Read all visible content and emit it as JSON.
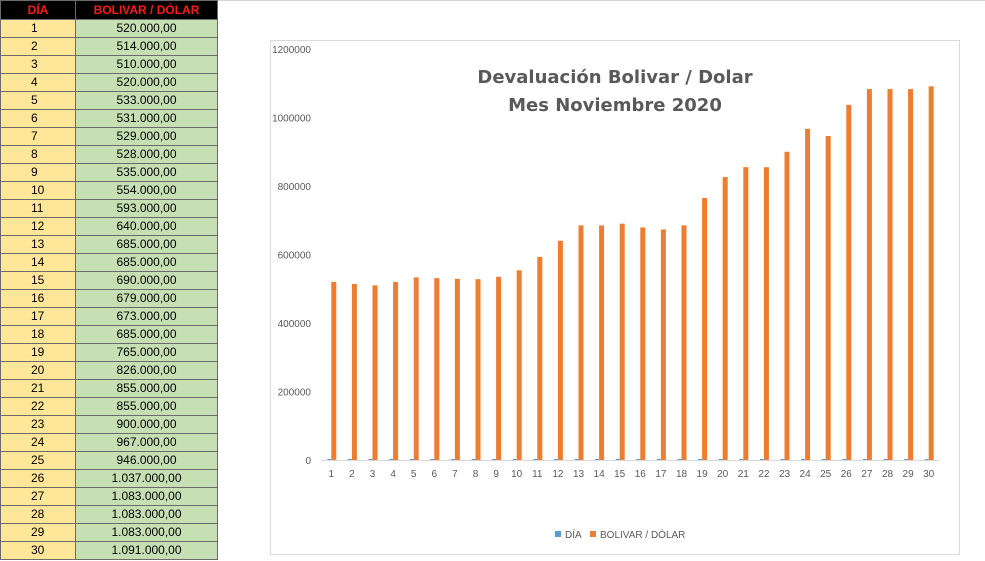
{
  "table": {
    "headers": [
      "DÍA",
      "BOLIVAR / DÓLAR"
    ],
    "rows": [
      [
        "1",
        "520.000,00"
      ],
      [
        "2",
        "514.000,00"
      ],
      [
        "3",
        "510.000,00"
      ],
      [
        "4",
        "520.000,00"
      ],
      [
        "5",
        "533.000,00"
      ],
      [
        "6",
        "531.000,00"
      ],
      [
        "7",
        "529.000,00"
      ],
      [
        "8",
        "528.000,00"
      ],
      [
        "9",
        "535.000,00"
      ],
      [
        "10",
        "554.000,00"
      ],
      [
        "11",
        "593.000,00"
      ],
      [
        "12",
        "640.000,00"
      ],
      [
        "13",
        "685.000,00"
      ],
      [
        "14",
        "685.000,00"
      ],
      [
        "15",
        "690.000,00"
      ],
      [
        "16",
        "679.000,00"
      ],
      [
        "17",
        "673.000,00"
      ],
      [
        "18",
        "685.000,00"
      ],
      [
        "19",
        "765.000,00"
      ],
      [
        "20",
        "826.000,00"
      ],
      [
        "21",
        "855.000,00"
      ],
      [
        "22",
        "855.000,00"
      ],
      [
        "23",
        "900.000,00"
      ],
      [
        "24",
        "967.000,00"
      ],
      [
        "25",
        "946.000,00"
      ],
      [
        "26",
        "1.037.000,00"
      ],
      [
        "27",
        "1.083.000,00"
      ],
      [
        "28",
        "1.083.000,00"
      ],
      [
        "29",
        "1.083.000,00"
      ],
      [
        "30",
        "1.091.000,00"
      ]
    ]
  },
  "chart_data": {
    "type": "bar",
    "title": [
      "Devaluación Bolivar / Dolar",
      "Mes Noviembre 2020"
    ],
    "categories": [
      "1",
      "2",
      "3",
      "4",
      "5",
      "6",
      "7",
      "8",
      "9",
      "10",
      "11",
      "12",
      "13",
      "14",
      "15",
      "16",
      "17",
      "18",
      "19",
      "20",
      "21",
      "22",
      "23",
      "24",
      "25",
      "26",
      "27",
      "28",
      "29",
      "30"
    ],
    "series": [
      {
        "name": "DÍA",
        "color": "#5b9bd5",
        "values": [
          1,
          2,
          3,
          4,
          5,
          6,
          7,
          8,
          9,
          10,
          11,
          12,
          13,
          14,
          15,
          16,
          17,
          18,
          19,
          20,
          21,
          22,
          23,
          24,
          25,
          26,
          27,
          28,
          29,
          30
        ]
      },
      {
        "name": "BOLIVAR / DÓLAR",
        "color": "#ed7d31",
        "values": [
          520000,
          514000,
          510000,
          520000,
          533000,
          531000,
          529000,
          528000,
          535000,
          554000,
          593000,
          640000,
          685000,
          685000,
          690000,
          679000,
          673000,
          685000,
          765000,
          826000,
          855000,
          855000,
          900000,
          967000,
          946000,
          1037000,
          1083000,
          1083000,
          1083000,
          1091000
        ]
      }
    ],
    "ylim": [
      0,
      1200000
    ],
    "yticks": [
      "0",
      "200000",
      "400000",
      "600000",
      "800000",
      "1000000",
      "1200000"
    ],
    "grid": false,
    "legend": "bottom"
  }
}
